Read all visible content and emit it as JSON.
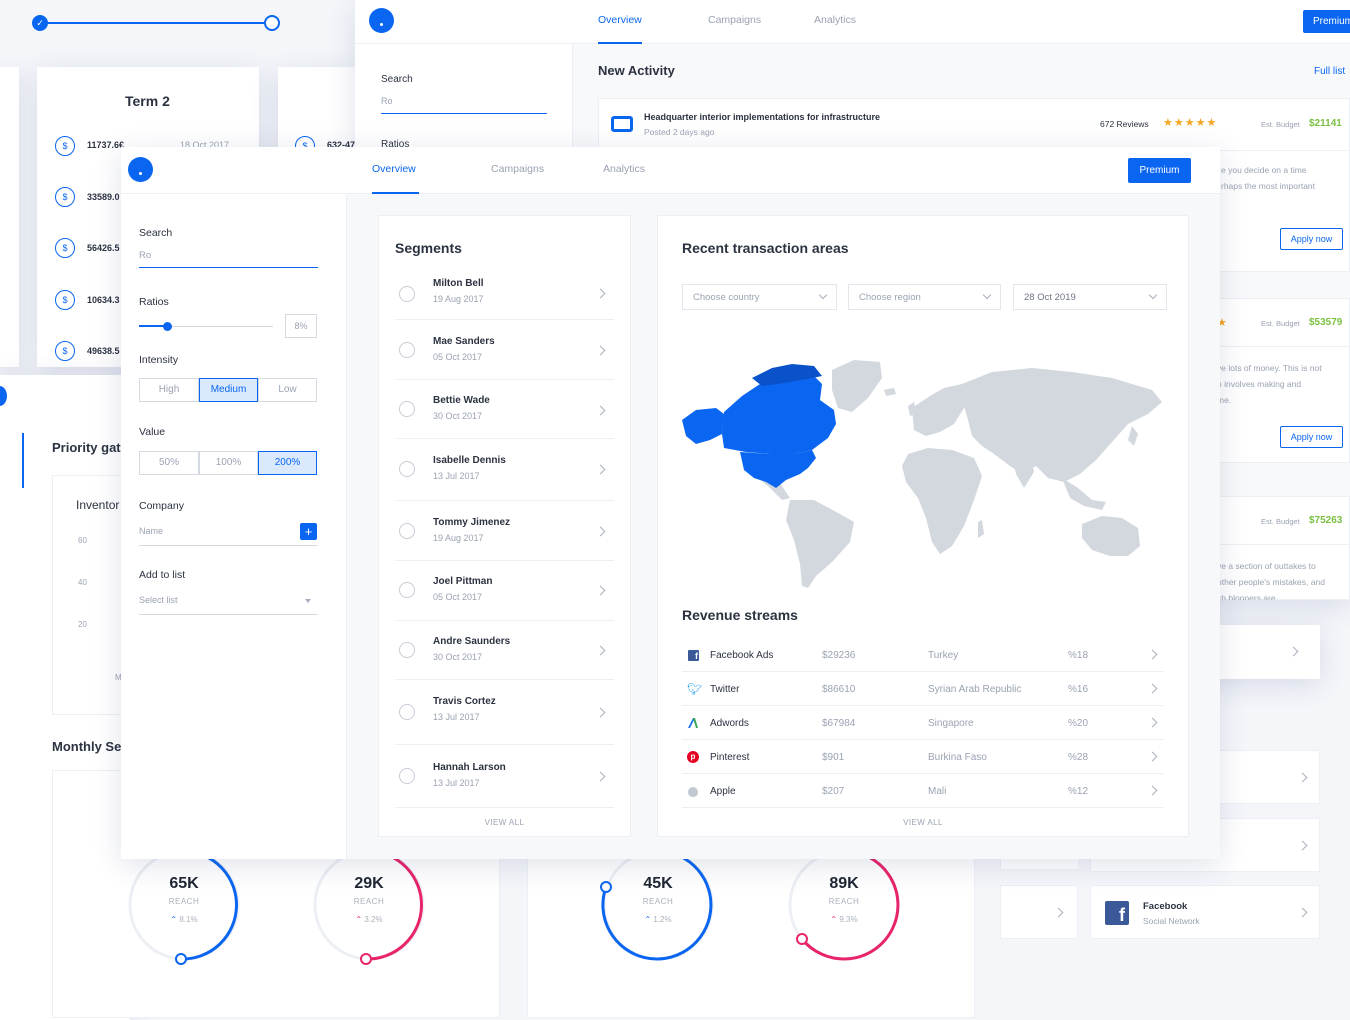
{
  "background_left": {
    "term_title": "Term 2",
    "rows": [
      {
        "amount": "11737.6€",
        "date": "18 Oct 2017"
      },
      {
        "amount": "33589.0",
        "date": ""
      },
      {
        "amount": "56426.5",
        "date": ""
      },
      {
        "amount": "10634.3",
        "date": ""
      },
      {
        "amount": "49638.5",
        "date": ""
      }
    ],
    "coin_symbol": "$",
    "second_amount": "632-47",
    "priority_title": "Priority gat",
    "inventory_title": "Inventor",
    "y_ticks": [
      "60",
      "40",
      "20"
    ],
    "tick_letter": "M",
    "monthly_title": "Monthly Se"
  },
  "rings": [
    {
      "value": "65K",
      "label": "REACH",
      "pct": "8.1%",
      "color": "#0a66f0"
    },
    {
      "value": "29K",
      "label": "REACH",
      "pct": "3.2%",
      "color": "#e8246a"
    },
    {
      "value": "45K",
      "label": "REACH",
      "pct": "1.2%",
      "color": "#0a66f0"
    },
    {
      "value": "89K",
      "label": "REACH",
      "pct": "9.3%",
      "color": "#e8246a"
    }
  ],
  "back_window": {
    "tabs": [
      "Overview",
      "Campaigns",
      "Analytics"
    ],
    "premium": "Premium",
    "search_label": "Search",
    "search_value": "Ro",
    "ratios_label": "Ratios",
    "title": "New Activity",
    "full_list": "Full list",
    "activity": {
      "title": "Headquarter interior implementations for infrastructure",
      "posted": "Posted 2 days ago",
      "reviews": "672 Reviews",
      "budget_label": "Est. Budget",
      "budget": "$21141"
    },
    "snippets": [
      "e you decide on a time",
      "rhaps the most important",
      "ve lots of money. This is not",
      "h involves making and",
      "me.",
      "ve a section of outtakes to",
      "other people's mistakes, and",
      "ch bloopers are"
    ],
    "apply_label": "Apply now",
    "budgets": [
      "$53579",
      "$75263"
    ],
    "budget_label": "Est. Budget",
    "facebook_title": "Facebook",
    "facebook_sub": "Social Network"
  },
  "front": {
    "tabs": [
      "Overview",
      "Campaigns",
      "Analytics"
    ],
    "premium": "Premium",
    "sidebar": {
      "search_label": "Search",
      "search_value": "Ro",
      "ratios_label": "Ratios",
      "ratio_value": "8%",
      "intensity_label": "Intensity",
      "intensity": [
        "High",
        "Medium",
        "Low"
      ],
      "value_label": "Value",
      "values": [
        "50%",
        "100%",
        "200%"
      ],
      "company_label": "Company",
      "company_placeholder": "Name",
      "add_label": "Add to list",
      "select_placeholder": "Select list"
    },
    "segments": {
      "title": "Segments",
      "items": [
        {
          "name": "Milton Bell",
          "date": "19 Aug 2017"
        },
        {
          "name": "Mae Sanders",
          "date": "05 Oct 2017"
        },
        {
          "name": "Bettie Wade",
          "date": "30 Oct 2017"
        },
        {
          "name": "Isabelle Dennis",
          "date": "13 Jul 2017"
        },
        {
          "name": "Tommy Jimenez",
          "date": "19 Aug 2017"
        },
        {
          "name": "Joel Pittman",
          "date": "05 Oct 2017"
        },
        {
          "name": "Andre Saunders",
          "date": "30 Oct 2017"
        },
        {
          "name": "Travis Cortez",
          "date": "13 Jul 2017"
        },
        {
          "name": "Hannah Larson",
          "date": "13 Jul 2017"
        }
      ],
      "view_all": "VIEW ALL"
    },
    "transactions": {
      "title": "Recent transaction areas",
      "country_placeholder": "Choose country",
      "region_placeholder": "Choose region",
      "date_value": "28 Oct 2019"
    },
    "revenue": {
      "title": "Revenue streams",
      "rows": [
        {
          "icon": "facebook-icon",
          "name": "Facebook Ads",
          "amount": "$29236",
          "country": "Turkey",
          "pct": "%18",
          "color": "#3b5998"
        },
        {
          "icon": "twitter-icon",
          "name": "Twitter",
          "amount": "$86610",
          "country": "Syrian Arab Republic",
          "pct": "%16",
          "color": "#1da1f2"
        },
        {
          "icon": "adwords-icon",
          "name": "Adwords",
          "amount": "$67984",
          "country": "Singapore",
          "pct": "%20",
          "color": "#1a73e8"
        },
        {
          "icon": "pinterest-icon",
          "name": "Pinterest",
          "amount": "$901",
          "country": "Burkina Faso",
          "pct": "%28",
          "color": "#e60023"
        },
        {
          "icon": "apple-icon",
          "name": "Apple",
          "amount": "$207",
          "country": "Mali",
          "pct": "%12",
          "color": "#b5bcc6"
        }
      ],
      "view_all": "VIEW ALL"
    }
  }
}
